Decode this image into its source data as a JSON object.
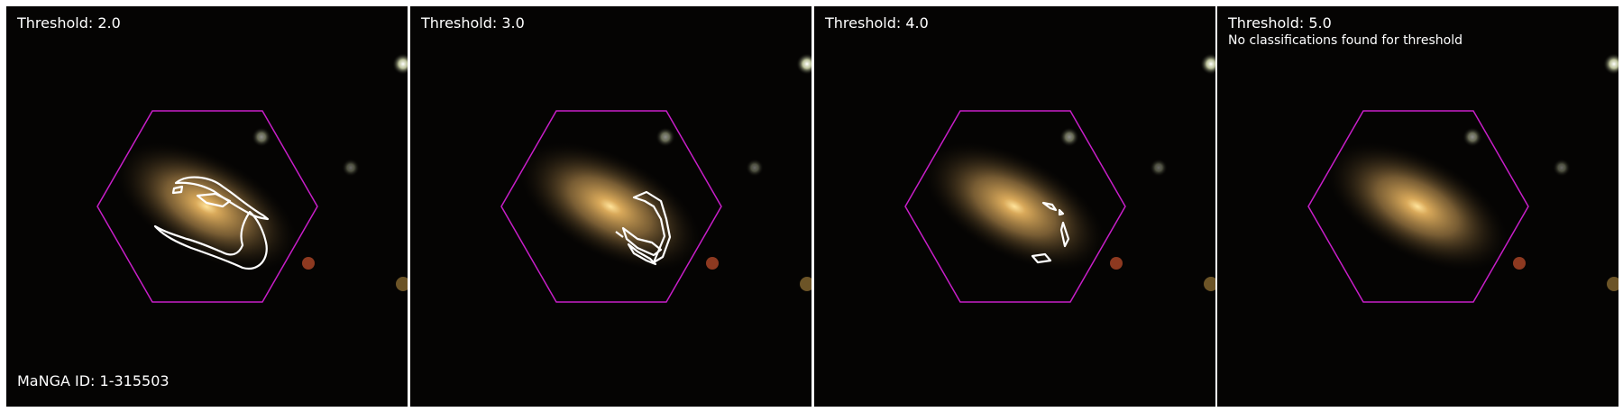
{
  "figure": {
    "panels": [
      {
        "title": "Threshold: 2.0",
        "note": ""
      },
      {
        "title": "Threshold: 3.0",
        "note": ""
      },
      {
        "title": "Threshold: 4.0",
        "note": ""
      },
      {
        "title": "Threshold: 5.0",
        "note": "No classifications found for threshold"
      }
    ],
    "manga_label": "MaNGA ID: 1-315503"
  },
  "colors": {
    "background": "#000000",
    "hexagon": "#c81ec8",
    "contour": "#ffffff",
    "galaxy_core": "#ffd27a",
    "galaxy_halo": "#9a7a42"
  },
  "icons": {
    "ifu_footprint": "hexagon-outline",
    "classification_region": "contour-outline"
  }
}
